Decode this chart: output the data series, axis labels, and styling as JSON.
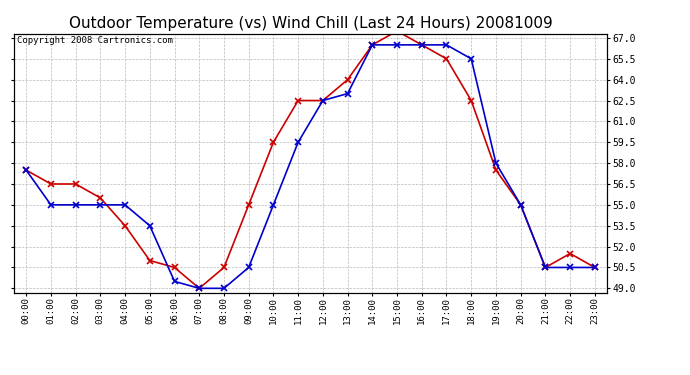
{
  "title": "Outdoor Temperature (vs) Wind Chill (Last 24 Hours) 20081009",
  "copyright_text": "Copyright 2008 Cartronics.com",
  "hours": [
    "00:00",
    "01:00",
    "02:00",
    "03:00",
    "04:00",
    "05:00",
    "06:00",
    "07:00",
    "08:00",
    "09:00",
    "10:00",
    "11:00",
    "12:00",
    "13:00",
    "14:00",
    "15:00",
    "16:00",
    "17:00",
    "18:00",
    "19:00",
    "20:00",
    "21:00",
    "22:00",
    "23:00"
  ],
  "outdoor_temp": [
    57.5,
    56.5,
    56.5,
    55.5,
    53.5,
    51.0,
    50.5,
    49.0,
    50.5,
    55.0,
    59.5,
    62.5,
    62.5,
    64.0,
    66.5,
    67.5,
    66.5,
    65.5,
    62.5,
    57.5,
    55.0,
    50.5,
    51.5,
    50.5
  ],
  "wind_chill": [
    57.5,
    55.0,
    55.0,
    55.0,
    55.0,
    53.5,
    49.5,
    49.0,
    49.0,
    50.5,
    55.0,
    59.5,
    62.5,
    63.0,
    66.5,
    66.5,
    66.5,
    66.5,
    65.5,
    58.0,
    55.0,
    50.5,
    50.5,
    50.5
  ],
  "temp_color": "#cc0000",
  "chill_color": "#0000cc",
  "bg_color": "#ffffff",
  "grid_color": "#bbbbbb",
  "ylim_min": 49.0,
  "ylim_max": 67.0,
  "yticks": [
    49.0,
    50.5,
    52.0,
    53.5,
    55.0,
    56.5,
    58.0,
    59.5,
    61.0,
    62.5,
    64.0,
    65.5,
    67.0
  ],
  "title_fontsize": 11,
  "copyright_fontsize": 6.5,
  "marker": "x",
  "linewidth": 1.2,
  "markersize": 4,
  "markeredgewidth": 1.2
}
